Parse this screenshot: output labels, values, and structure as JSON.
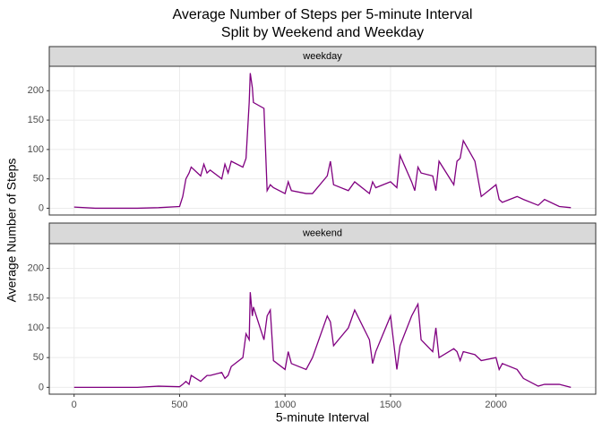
{
  "chart_data": {
    "type": "line",
    "title": [
      "Average Number of Steps per 5-minute Interval",
      "Split by Weekend and Weekday"
    ],
    "x_label": "5-minute Interval",
    "y_label": "Average Number of Steps",
    "facet": true,
    "grid": true,
    "xlim": [
      -117.75,
      2472.75
    ],
    "xticks": [
      0,
      500,
      1000,
      1500,
      2000
    ],
    "ylim": [
      -11.5,
      241.6
    ],
    "yticks": [
      0,
      50,
      100,
      150,
      200
    ],
    "x": [
      0,
      100,
      200,
      300,
      400,
      500,
      515,
      530,
      545,
      555,
      600,
      615,
      630,
      645,
      700,
      715,
      730,
      745,
      800,
      815,
      830,
      835,
      845,
      850,
      900,
      915,
      930,
      945,
      1000,
      1015,
      1030,
      1100,
      1130,
      1200,
      1215,
      1230,
      1300,
      1330,
      1400,
      1415,
      1430,
      1500,
      1530,
      1545,
      1600,
      1615,
      1630,
      1645,
      1700,
      1715,
      1730,
      1800,
      1815,
      1830,
      1845,
      1900,
      1930,
      2000,
      2015,
      2030,
      2100,
      2130,
      2200,
      2230,
      2300,
      2355
    ],
    "series": [
      {
        "name": "weekday",
        "color": "#800080",
        "values": [
          2,
          0,
          0,
          0,
          1,
          3,
          20,
          50,
          60,
          70,
          55,
          75,
          60,
          65,
          50,
          75,
          60,
          80,
          70,
          85,
          180,
          230,
          205,
          180,
          170,
          30,
          40,
          35,
          25,
          45,
          30,
          25,
          25,
          55,
          80,
          40,
          30,
          45,
          25,
          45,
          35,
          45,
          35,
          90,
          45,
          30,
          70,
          60,
          55,
          30,
          80,
          40,
          80,
          85,
          115,
          80,
          20,
          40,
          15,
          10,
          20,
          15,
          5,
          15,
          3,
          1
        ]
      },
      {
        "name": "weekend",
        "color": "#800080",
        "values": [
          0,
          0,
          0,
          0,
          2,
          1,
          5,
          10,
          5,
          20,
          10,
          15,
          20,
          20,
          25,
          15,
          20,
          35,
          50,
          90,
          80,
          160,
          120,
          135,
          80,
          120,
          130,
          45,
          30,
          60,
          40,
          30,
          50,
          120,
          110,
          70,
          100,
          130,
          80,
          40,
          60,
          120,
          30,
          70,
          120,
          130,
          140,
          80,
          60,
          100,
          50,
          65,
          60,
          45,
          60,
          55,
          45,
          50,
          30,
          40,
          30,
          15,
          2,
          5,
          5,
          0
        ]
      }
    ]
  }
}
